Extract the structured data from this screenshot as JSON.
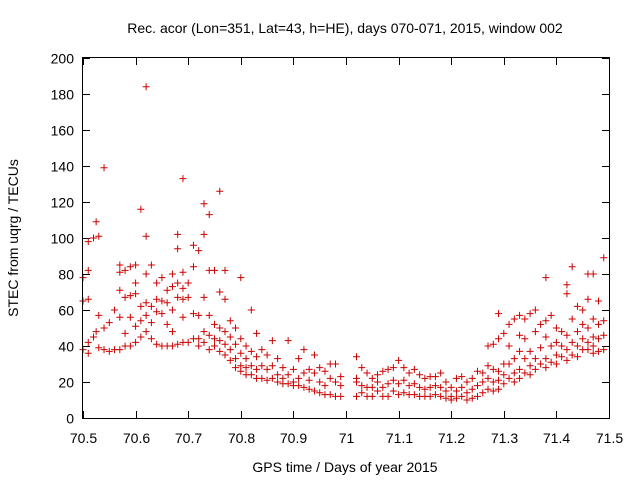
{
  "chart_data": {
    "type": "scatter",
    "title": "Rec. acor (Lon=351, Lat=43, h=HE), days 070-071, 2015, window 002",
    "xlabel": "GPS time / Days of year 2015",
    "ylabel": "STEC from uqrg / TECUs",
    "xlim": [
      70.5,
      71.5
    ],
    "ylim": [
      0,
      200
    ],
    "xticks": [
      "70.5",
      "70.6",
      "70.7",
      "70.8",
      "70.9",
      "71",
      "71.1",
      "71.2",
      "71.3",
      "71.4",
      "71.5"
    ],
    "yticks": [
      "0",
      "20",
      "40",
      "60",
      "80",
      "100",
      "120",
      "140",
      "160",
      "180",
      "200"
    ],
    "marker": "+",
    "color": "#cc0000",
    "grid": false,
    "points": [
      [
        70.5,
        78
      ],
      [
        70.5,
        65
      ],
      [
        70.5,
        38
      ],
      [
        70.51,
        82
      ],
      [
        70.51,
        98
      ],
      [
        70.51,
        66
      ],
      [
        70.51,
        42
      ],
      [
        70.51,
        36
      ],
      [
        70.52,
        100
      ],
      [
        70.52,
        45
      ],
      [
        70.525,
        109
      ],
      [
        70.525,
        48
      ],
      [
        70.53,
        101
      ],
      [
        70.53,
        57
      ],
      [
        70.53,
        39
      ],
      [
        70.54,
        139
      ],
      [
        70.54,
        50
      ],
      [
        70.54,
        38
      ],
      [
        70.55,
        53
      ],
      [
        70.55,
        37
      ],
      [
        70.56,
        60
      ],
      [
        70.56,
        38
      ],
      [
        70.57,
        85
      ],
      [
        70.57,
        71
      ],
      [
        70.57,
        81
      ],
      [
        70.57,
        56
      ],
      [
        70.57,
        38
      ],
      [
        70.58,
        82
      ],
      [
        70.58,
        67
      ],
      [
        70.58,
        47
      ],
      [
        70.58,
        40
      ],
      [
        70.59,
        84
      ],
      [
        70.59,
        68
      ],
      [
        70.59,
        56
      ],
      [
        70.59,
        40
      ],
      [
        70.6,
        85
      ],
      [
        70.6,
        75
      ],
      [
        70.6,
        69
      ],
      [
        70.6,
        51
      ],
      [
        70.6,
        42
      ],
      [
        70.61,
        116
      ],
      [
        70.61,
        62
      ],
      [
        70.61,
        54
      ],
      [
        70.61,
        45
      ],
      [
        70.62,
        184
      ],
      [
        70.62,
        101
      ],
      [
        70.62,
        80
      ],
      [
        70.62,
        64
      ],
      [
        70.62,
        57
      ],
      [
        70.62,
        48
      ],
      [
        70.63,
        85
      ],
      [
        70.63,
        62
      ],
      [
        70.63,
        53
      ],
      [
        70.63,
        44
      ],
      [
        70.64,
        75
      ],
      [
        70.64,
        66
      ],
      [
        70.64,
        59
      ],
      [
        70.64,
        41
      ],
      [
        70.65,
        78
      ],
      [
        70.65,
        65
      ],
      [
        70.65,
        58
      ],
      [
        70.65,
        40
      ],
      [
        70.66,
        71
      ],
      [
        70.66,
        64
      ],
      [
        70.66,
        52
      ],
      [
        70.66,
        40
      ],
      [
        70.67,
        80
      ],
      [
        70.67,
        73
      ],
      [
        70.67,
        60
      ],
      [
        70.67,
        48
      ],
      [
        70.67,
        40
      ],
      [
        70.68,
        102
      ],
      [
        70.68,
        94
      ],
      [
        70.68,
        75
      ],
      [
        70.68,
        67
      ],
      [
        70.68,
        41
      ],
      [
        70.69,
        133
      ],
      [
        70.69,
        81
      ],
      [
        70.69,
        72
      ],
      [
        70.69,
        66
      ],
      [
        70.69,
        56
      ],
      [
        70.69,
        42
      ],
      [
        70.7,
        75
      ],
      [
        70.7,
        67
      ],
      [
        70.7,
        42
      ],
      [
        70.71,
        96
      ],
      [
        70.71,
        84
      ],
      [
        70.71,
        58
      ],
      [
        70.71,
        44
      ],
      [
        70.72,
        93
      ],
      [
        70.72,
        57
      ],
      [
        70.72,
        44
      ],
      [
        70.72,
        40
      ],
      [
        70.73,
        119
      ],
      [
        70.73,
        102
      ],
      [
        70.73,
        67
      ],
      [
        70.73,
        48
      ],
      [
        70.73,
        42
      ],
      [
        70.74,
        113
      ],
      [
        70.74,
        82
      ],
      [
        70.74,
        57
      ],
      [
        70.74,
        46
      ],
      [
        70.74,
        38
      ],
      [
        70.75,
        82
      ],
      [
        70.75,
        52
      ],
      [
        70.75,
        44
      ],
      [
        70.75,
        40
      ],
      [
        70.76,
        126
      ],
      [
        70.76,
        70
      ],
      [
        70.76,
        50
      ],
      [
        70.76,
        43
      ],
      [
        70.76,
        37
      ],
      [
        70.77,
        82
      ],
      [
        70.77,
        66
      ],
      [
        70.77,
        48
      ],
      [
        70.77,
        41
      ],
      [
        70.77,
        35
      ],
      [
        70.78,
        54
      ],
      [
        70.78,
        45
      ],
      [
        70.78,
        38
      ],
      [
        70.78,
        32
      ],
      [
        70.79,
        50
      ],
      [
        70.79,
        41
      ],
      [
        70.79,
        33
      ],
      [
        70.79,
        28
      ],
      [
        70.8,
        78
      ],
      [
        70.8,
        44
      ],
      [
        70.8,
        36
      ],
      [
        70.8,
        29
      ],
      [
        70.8,
        26
      ],
      [
        70.81,
        40
      ],
      [
        70.81,
        33
      ],
      [
        70.81,
        28
      ],
      [
        70.81,
        24
      ],
      [
        70.82,
        60
      ],
      [
        70.82,
        37
      ],
      [
        70.82,
        29
      ],
      [
        70.82,
        24
      ],
      [
        70.83,
        47
      ],
      [
        70.83,
        34
      ],
      [
        70.83,
        27
      ],
      [
        70.83,
        22
      ],
      [
        70.84,
        38
      ],
      [
        70.84,
        29
      ],
      [
        70.84,
        22
      ],
      [
        70.85,
        35
      ],
      [
        70.85,
        27
      ],
      [
        70.85,
        21
      ],
      [
        70.86,
        43
      ],
      [
        70.86,
        29
      ],
      [
        70.86,
        22
      ],
      [
        70.87,
        33
      ],
      [
        70.87,
        24
      ],
      [
        70.87,
        20
      ],
      [
        70.88,
        28
      ],
      [
        70.88,
        22
      ],
      [
        70.88,
        19
      ],
      [
        70.89,
        43
      ],
      [
        70.89,
        24
      ],
      [
        70.89,
        19
      ],
      [
        70.9,
        27
      ],
      [
        70.9,
        20
      ],
      [
        70.9,
        18
      ],
      [
        70.91,
        33
      ],
      [
        70.91,
        22
      ],
      [
        70.91,
        18
      ],
      [
        70.92,
        38
      ],
      [
        70.92,
        25
      ],
      [
        70.92,
        17
      ],
      [
        70.93,
        27
      ],
      [
        70.93,
        21
      ],
      [
        70.93,
        16
      ],
      [
        70.94,
        35
      ],
      [
        70.94,
        25
      ],
      [
        70.94,
        15
      ],
      [
        70.95,
        28
      ],
      [
        70.95,
        20
      ],
      [
        70.95,
        14
      ],
      [
        70.96,
        26
      ],
      [
        70.96,
        18
      ],
      [
        70.96,
        13
      ],
      [
        70.97,
        30
      ],
      [
        70.97,
        22
      ],
      [
        70.97,
        13
      ],
      [
        70.98,
        30
      ],
      [
        70.98,
        20
      ],
      [
        70.98,
        12
      ],
      [
        70.99,
        23
      ],
      [
        70.99,
        18
      ],
      [
        70.99,
        12
      ],
      [
        71.02,
        34
      ],
      [
        71.02,
        22
      ],
      [
        71.02,
        20
      ],
      [
        71.02,
        12
      ],
      [
        71.03,
        28
      ],
      [
        71.03,
        18
      ],
      [
        71.03,
        14
      ],
      [
        71.04,
        25
      ],
      [
        71.04,
        17
      ],
      [
        71.04,
        12
      ],
      [
        71.05,
        22
      ],
      [
        71.05,
        17
      ],
      [
        71.05,
        12
      ],
      [
        71.06,
        24
      ],
      [
        71.06,
        20
      ],
      [
        71.06,
        15
      ],
      [
        71.07,
        26
      ],
      [
        71.07,
        17
      ],
      [
        71.07,
        12
      ],
      [
        71.08,
        27
      ],
      [
        71.08,
        19
      ],
      [
        71.08,
        12
      ],
      [
        71.09,
        28
      ],
      [
        71.09,
        21
      ],
      [
        71.09,
        15
      ],
      [
        71.1,
        32
      ],
      [
        71.1,
        19
      ],
      [
        71.1,
        13
      ],
      [
        71.11,
        28
      ],
      [
        71.11,
        21
      ],
      [
        71.11,
        14
      ],
      [
        71.12,
        25
      ],
      [
        71.12,
        18
      ],
      [
        71.12,
        13
      ],
      [
        71.13,
        27
      ],
      [
        71.13,
        19
      ],
      [
        71.13,
        13
      ],
      [
        71.14,
        24
      ],
      [
        71.14,
        17
      ],
      [
        71.14,
        12
      ],
      [
        71.15,
        22
      ],
      [
        71.15,
        16
      ],
      [
        71.15,
        12
      ],
      [
        71.16,
        23
      ],
      [
        71.16,
        17
      ],
      [
        71.16,
        12
      ],
      [
        71.17,
        23
      ],
      [
        71.17,
        18
      ],
      [
        71.17,
        13
      ],
      [
        71.18,
        25
      ],
      [
        71.18,
        17
      ],
      [
        71.18,
        12
      ],
      [
        71.19,
        20
      ],
      [
        71.19,
        15
      ],
      [
        71.19,
        11
      ],
      [
        71.2,
        17
      ],
      [
        71.2,
        12
      ],
      [
        71.2,
        10
      ],
      [
        71.21,
        22
      ],
      [
        71.21,
        15
      ],
      [
        71.21,
        11
      ],
      [
        71.22,
        23
      ],
      [
        71.22,
        17
      ],
      [
        71.22,
        12
      ],
      [
        71.23,
        20
      ],
      [
        71.23,
        14
      ],
      [
        71.23,
        10
      ],
      [
        71.24,
        22
      ],
      [
        71.24,
        16
      ],
      [
        71.24,
        11
      ],
      [
        71.25,
        26
      ],
      [
        71.25,
        18
      ],
      [
        71.25,
        12
      ],
      [
        71.26,
        25
      ],
      [
        71.26,
        20
      ],
      [
        71.26,
        14
      ],
      [
        71.27,
        40
      ],
      [
        71.27,
        29
      ],
      [
        71.27,
        22
      ],
      [
        71.27,
        16
      ],
      [
        71.28,
        41
      ],
      [
        71.28,
        27
      ],
      [
        71.28,
        20
      ],
      [
        71.28,
        15
      ],
      [
        71.29,
        58
      ],
      [
        71.29,
        44
      ],
      [
        71.29,
        26
      ],
      [
        71.29,
        21
      ],
      [
        71.29,
        16
      ],
      [
        71.3,
        47
      ],
      [
        71.3,
        30
      ],
      [
        71.3,
        24
      ],
      [
        71.3,
        19
      ],
      [
        71.31,
        52
      ],
      [
        71.31,
        40
      ],
      [
        71.31,
        30
      ],
      [
        71.31,
        22
      ],
      [
        71.32,
        55
      ],
      [
        71.32,
        33
      ],
      [
        71.32,
        25
      ],
      [
        71.32,
        20
      ],
      [
        71.33,
        57
      ],
      [
        71.33,
        46
      ],
      [
        71.33,
        37
      ],
      [
        71.33,
        27
      ],
      [
        71.33,
        22
      ],
      [
        71.34,
        55
      ],
      [
        71.34,
        44
      ],
      [
        71.34,
        33
      ],
      [
        71.34,
        25
      ],
      [
        71.35,
        58
      ],
      [
        71.35,
        37
      ],
      [
        71.35,
        29
      ],
      [
        71.35,
        24
      ],
      [
        71.36,
        60
      ],
      [
        71.36,
        48
      ],
      [
        71.36,
        33
      ],
      [
        71.36,
        27
      ],
      [
        71.37,
        52
      ],
      [
        71.37,
        39
      ],
      [
        71.37,
        30
      ],
      [
        71.38,
        78
      ],
      [
        71.38,
        54
      ],
      [
        71.38,
        45
      ],
      [
        71.38,
        33
      ],
      [
        71.38,
        28
      ],
      [
        71.39,
        57
      ],
      [
        71.39,
        40
      ],
      [
        71.39,
        31
      ],
      [
        71.4,
        50
      ],
      [
        71.4,
        42
      ],
      [
        71.4,
        35
      ],
      [
        71.4,
        30
      ],
      [
        71.41,
        48
      ],
      [
        71.41,
        40
      ],
      [
        71.41,
        34
      ],
      [
        71.42,
        74
      ],
      [
        71.42,
        69
      ],
      [
        71.42,
        46
      ],
      [
        71.42,
        38
      ],
      [
        71.42,
        32
      ],
      [
        71.43,
        84
      ],
      [
        71.43,
        55
      ],
      [
        71.43,
        42
      ],
      [
        71.43,
        35
      ],
      [
        71.44,
        62
      ],
      [
        71.44,
        48
      ],
      [
        71.44,
        40
      ],
      [
        71.44,
        34
      ],
      [
        71.45,
        60
      ],
      [
        71.45,
        52
      ],
      [
        71.45,
        44
      ],
      [
        71.45,
        38
      ],
      [
        71.46,
        80
      ],
      [
        71.46,
        66
      ],
      [
        71.46,
        50
      ],
      [
        71.46,
        42
      ],
      [
        71.46,
        38
      ],
      [
        71.47,
        80
      ],
      [
        71.47,
        55
      ],
      [
        71.47,
        45
      ],
      [
        71.47,
        40
      ],
      [
        71.47,
        36
      ],
      [
        71.48,
        65
      ],
      [
        71.48,
        52
      ],
      [
        71.48,
        44
      ],
      [
        71.48,
        37
      ],
      [
        71.49,
        89
      ],
      [
        71.49,
        54
      ],
      [
        71.49,
        46
      ],
      [
        71.49,
        38
      ]
    ]
  }
}
